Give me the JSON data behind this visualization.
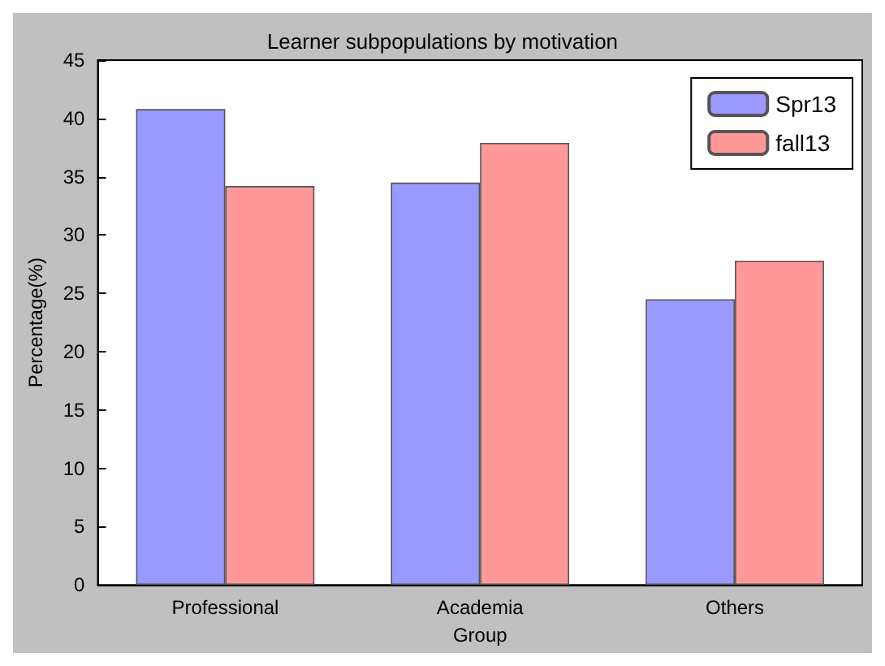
{
  "chart_data": {
    "type": "bar",
    "title": "Learner subpopulations by motivation",
    "xlabel": "Group",
    "ylabel": "Percentage(%)",
    "categories": [
      "Professional",
      "Academia",
      "Others"
    ],
    "series": [
      {
        "name": "Spr13",
        "color": "#9999ff",
        "values": [
          40.8,
          34.5,
          24.5
        ]
      },
      {
        "name": "fall13",
        "color": "#ff9999",
        "values": [
          34.2,
          37.9,
          27.8
        ]
      }
    ],
    "ylim": [
      0,
      45
    ],
    "yticks": [
      0,
      5,
      10,
      15,
      20,
      25,
      30,
      35,
      40,
      45
    ],
    "grid": false,
    "legend": "top right"
  }
}
